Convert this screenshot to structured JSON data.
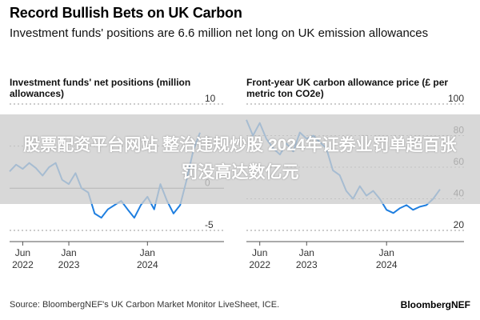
{
  "header": {
    "title": "Record Bullish Bets on UK Carbon",
    "subtitle": "Investment funds' positions are 6.6 million net long on UK emission allowances"
  },
  "overlay": {
    "banner_text": "股票配资平台网站 整治违规炒股 2024年证券业罚单超百张 罚没高达数亿元"
  },
  "footer": {
    "source": "Source: BloombergNEF's UK Carbon Market Monitor LiveSheet, ICE.",
    "brand": "BloombergNEF"
  },
  "colors": {
    "line": "#1f7fe0",
    "grid": "#7a7a7a",
    "banner_text": "#ffffff"
  },
  "chart_data": [
    {
      "type": "line",
      "title": "Investment funds' net positions (million allowances)",
      "x_tick_labels": [
        [
          "Jun",
          "2022"
        ],
        [
          "Jan",
          "2023"
        ],
        [
          "Jan",
          "2024"
        ]
      ],
      "x_tick_dates": [
        "2022-06-01",
        "2023-01-01",
        "2024-01-01"
      ],
      "y_tick_labels": [
        "10",
        "5",
        "0",
        "-5"
      ],
      "ylim": [
        -5,
        10
      ],
      "series": [
        {
          "dates": [
            "2022-04-01",
            "2022-05-01",
            "2022-06-01",
            "2022-07-01",
            "2022-08-01",
            "2022-09-01",
            "2022-10-01",
            "2022-11-01",
            "2022-12-01",
            "2023-01-01",
            "2023-02-01",
            "2023-03-01",
            "2023-04-01",
            "2023-05-01",
            "2023-06-01",
            "2023-07-01",
            "2023-08-01",
            "2023-09-01",
            "2023-10-01",
            "2023-11-01",
            "2023-12-01",
            "2024-01-01",
            "2024-02-01",
            "2024-03-01",
            "2024-04-01",
            "2024-05-01",
            "2024-06-01",
            "2024-07-01",
            "2024-08-01",
            "2024-09-01"
          ],
          "values": [
            2.0,
            2.8,
            2.3,
            3.0,
            2.4,
            1.5,
            2.5,
            3.0,
            1.0,
            0.5,
            1.8,
            0.0,
            -0.5,
            -3.0,
            -3.5,
            -2.5,
            -2.0,
            -1.5,
            -2.5,
            -3.5,
            -2.0,
            -1.0,
            -2.5,
            0.5,
            -1.5,
            -3.0,
            -2.0,
            1.0,
            4.5,
            6.6
          ]
        }
      ]
    },
    {
      "type": "line",
      "title": "Front-year UK carbon allowance price (£ per metric ton CO2e)",
      "x_tick_labels": [
        [
          "Jun",
          "2022"
        ],
        [
          "Jan",
          "2023"
        ],
        [
          "Jan",
          "2024"
        ]
      ],
      "x_tick_dates": [
        "2022-06-01",
        "2023-01-01",
        "2024-01-01"
      ],
      "y_tick_labels": [
        "100",
        "80",
        "60",
        "40",
        "20"
      ],
      "ylim": [
        20,
        100
      ],
      "series": [
        {
          "dates": [
            "2022-04-01",
            "2022-05-01",
            "2022-06-01",
            "2022-07-01",
            "2022-08-01",
            "2022-09-01",
            "2022-10-01",
            "2022-11-01",
            "2022-12-01",
            "2023-01-01",
            "2023-02-01",
            "2023-03-01",
            "2023-04-01",
            "2023-05-01",
            "2023-06-01",
            "2023-07-01",
            "2023-08-01",
            "2023-09-01",
            "2023-10-01",
            "2023-11-01",
            "2023-12-01",
            "2024-01-01",
            "2024-02-01",
            "2024-03-01",
            "2024-04-01",
            "2024-05-01",
            "2024-06-01",
            "2024-07-01",
            "2024-08-01",
            "2024-09-01"
          ],
          "values": [
            90,
            80,
            88,
            78,
            72,
            68,
            75,
            70,
            82,
            78,
            80,
            76,
            72,
            58,
            55,
            45,
            40,
            48,
            42,
            45,
            40,
            33,
            31,
            34,
            36,
            33,
            35,
            36,
            40,
            46
          ]
        }
      ]
    }
  ]
}
